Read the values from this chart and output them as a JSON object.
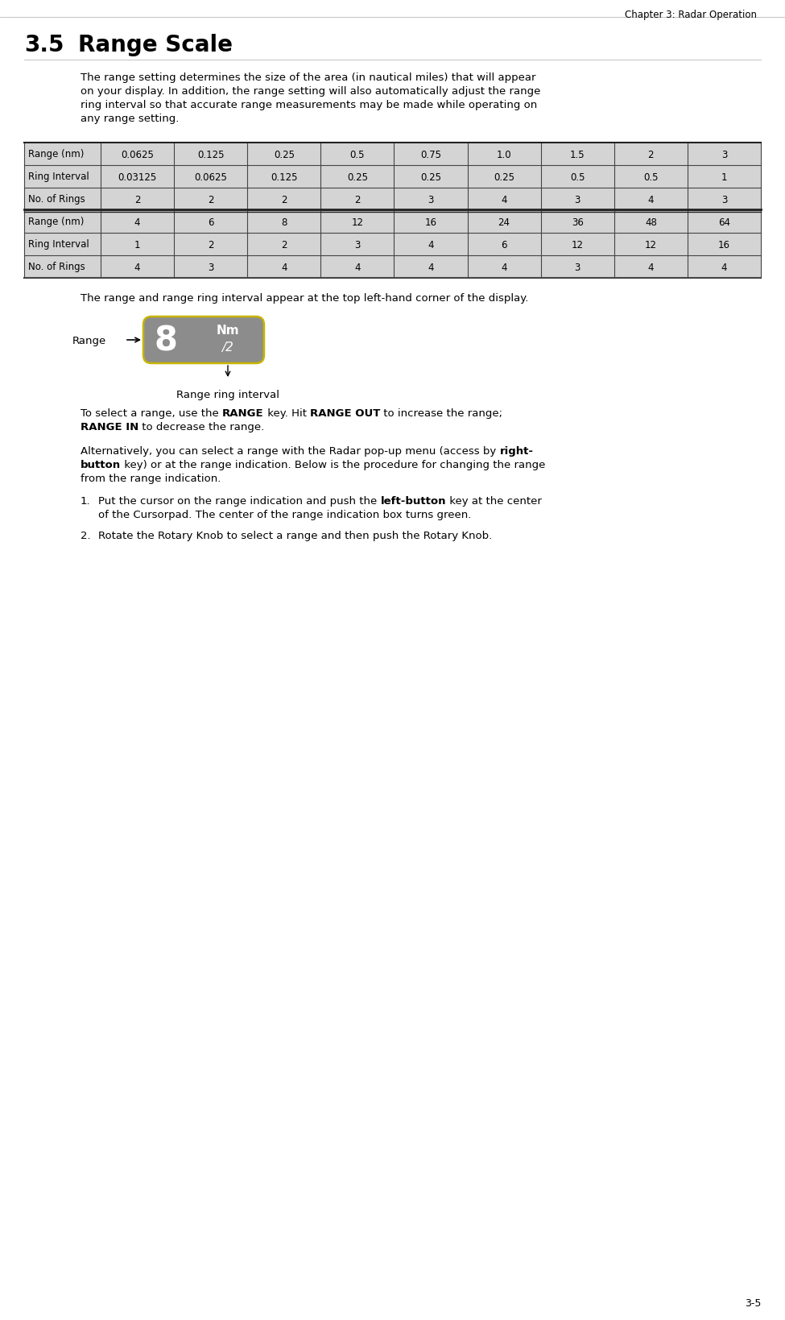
{
  "chapter_header": "Chapter 3: Radar Operation",
  "section_num": "3.5",
  "section_title": "Range Scale",
  "para1_lines": [
    "The range setting determines the size of the area (in nautical miles) that will appear",
    "on your display. In addition, the range setting will also automatically adjust the range",
    "ring interval so that accurate range measurements may be made while operating on",
    "any range setting."
  ],
  "table_rows": [
    [
      "Range (nm)",
      "0.0625",
      "0.125",
      "0.25",
      "0.5",
      "0.75",
      "1.0",
      "1.5",
      "2",
      "3"
    ],
    [
      "Ring Interval",
      "0.03125",
      "0.0625",
      "0.125",
      "0.25",
      "0.25",
      "0.25",
      "0.5",
      "0.5",
      "1"
    ],
    [
      "No. of Rings",
      "2",
      "2",
      "2",
      "2",
      "3",
      "4",
      "3",
      "4",
      "3"
    ],
    [
      "Range (nm)",
      "4",
      "6",
      "8",
      "12",
      "16",
      "24",
      "36",
      "48",
      "64"
    ],
    [
      "Ring Interval",
      "1",
      "2",
      "2",
      "3",
      "4",
      "6",
      "12",
      "12",
      "16"
    ],
    [
      "No. of Rings",
      "4",
      "3",
      "4",
      "4",
      "4",
      "4",
      "3",
      "4",
      "4"
    ]
  ],
  "para2": "The range and range ring interval appear at the top left-hand corner of the display.",
  "range_label": "Range",
  "range_box_number": "8",
  "range_box_unit": "Nm",
  "range_box_interval": "/2",
  "range_ring_label": "Range ring interval",
  "para3_line1": [
    [
      "To select a range, use the ",
      false
    ],
    [
      "RANGE",
      true
    ],
    [
      " key. Hit ",
      false
    ],
    [
      "RANGE OUT",
      true
    ],
    [
      " to increase the range;",
      false
    ]
  ],
  "para3_line2": [
    [
      "RANGE IN",
      true
    ],
    [
      " to decrease the range.",
      false
    ]
  ],
  "para4_line1": [
    [
      "Alternatively, you can select a range with the Radar pop-up menu (access by ",
      false
    ],
    [
      "right-",
      true
    ]
  ],
  "para4_line2": [
    [
      "button",
      true
    ],
    [
      " key) or at the range indication. Below is the procedure for changing the range",
      false
    ]
  ],
  "para4_line3": "from the range indication.",
  "list1_line1": [
    [
      "Put the cursor on the range indication and push the ",
      false
    ],
    [
      "left-button",
      true
    ],
    [
      " key at the center",
      false
    ]
  ],
  "list1_line2": "of the Cursorpad. The center of the range indication box turns green.",
  "list2": "Rotate the Rotary Knob to select a range and then push the Rotary Knob.",
  "page_num": "3-5",
  "bg_color": "#ffffff",
  "table_row_bg": "#d4d4d4",
  "table_border_color": "#555555",
  "range_box_bg": "#8c8c8c",
  "range_box_border": "#c8b400",
  "text_color": "#000000",
  "body_font_size": 9.5,
  "title_font_size": 20,
  "table_font_size": 8.5
}
